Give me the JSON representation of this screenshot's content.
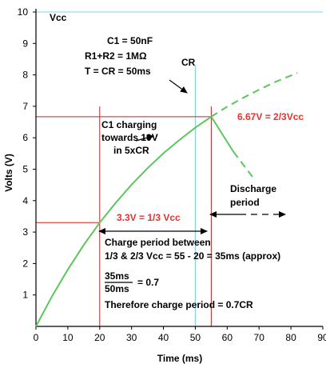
{
  "chart_data": {
    "type": "line",
    "title": "",
    "xlabel": "Time (ms)",
    "ylabel": "Volts (V)",
    "xlim": [
      0,
      90
    ],
    "ylim": [
      0,
      10
    ],
    "x_ticks": [
      0,
      10,
      20,
      30,
      40,
      50,
      60,
      70,
      80,
      90
    ],
    "y_ticks": [
      1,
      2,
      3,
      4,
      5,
      6,
      7,
      8,
      9,
      10
    ],
    "grid": false,
    "vcc_label": "Vcc",
    "vcc_value": 10,
    "cr_label": "CR",
    "cr_value": 50,
    "charging_curve": {
      "x": [
        0,
        5,
        10,
        15,
        20,
        25,
        30,
        35,
        40,
        45,
        50,
        55
      ],
      "y": [
        0,
        0.95,
        1.81,
        2.59,
        3.3,
        3.93,
        4.51,
        5.03,
        5.51,
        5.93,
        6.32,
        6.67
      ]
    },
    "continued_charge_dashed": {
      "x": [
        55,
        60,
        65,
        70,
        75,
        80,
        82
      ],
      "y": [
        6.67,
        6.99,
        7.27,
        7.53,
        7.77,
        7.98,
        8.06
      ]
    },
    "discharge_solid": {
      "x": [
        55,
        62
      ],
      "y": [
        6.67,
        5.55
      ]
    },
    "discharge_dashed": {
      "x": [
        62,
        68
      ],
      "y": [
        5.55,
        4.75
      ]
    },
    "threshold_high": {
      "y": 6.67,
      "x": 55,
      "label": "6.67V = 2/3Vcc"
    },
    "threshold_low": {
      "y": 3.3,
      "x": 20,
      "label": "3.3V = 1/3 Vcc"
    },
    "colors": {
      "curve": "#5cc65c",
      "threshold": "#cc2222",
      "cr_line": "#7fd6e8",
      "vcc_line": "#7fd6e8",
      "red_text": "#e8322d"
    },
    "annotations": {
      "params": [
        "C1 = 50nF",
        "R1+R2 = 1MΩ",
        "T = CR = 50ms"
      ],
      "charging": [
        "C1 charging",
        "towards 10V",
        "in 5xCR"
      ],
      "discharge": [
        "Discharge",
        "period"
      ],
      "charge_period": [
        "Charge period between",
        "1/3 & 2/3 Vcc = 55 - 20 = 35ms (approx)"
      ],
      "fraction_num": "35ms",
      "fraction_den": "50ms",
      "fraction_result": "= 0.7",
      "conclusion": "Therefore charge period = 0.7CR"
    }
  }
}
